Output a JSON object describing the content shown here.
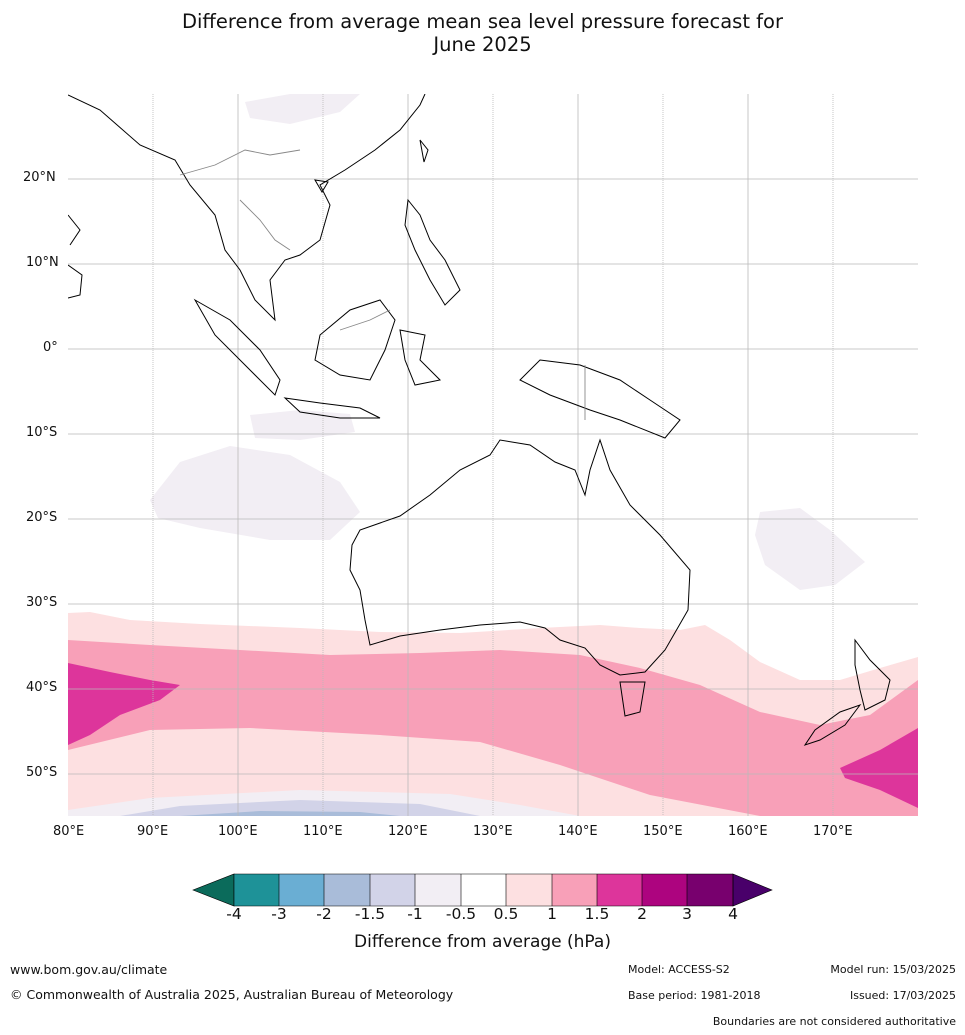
{
  "title_line1": "Difference from average mean sea level pressure forecast for",
  "title_line2": "June 2025",
  "map": {
    "lon_range": [
      80,
      180
    ],
    "lat_range": [
      -55,
      30
    ],
    "lon_ticks": [
      "80°E",
      "90°E",
      "100°E",
      "110°E",
      "120°E",
      "130°E",
      "140°E",
      "150°E",
      "160°E",
      "170°E"
    ],
    "lat_ticks": [
      "20°N",
      "10°N",
      "0°",
      "10°S",
      "20°S",
      "30°S",
      "40°S",
      "50°S"
    ],
    "grid": true,
    "boundaries_icon": "coastline-outline"
  },
  "colorbar": {
    "title": "Difference from average (hPa)",
    "labels": [
      "-4",
      "-3",
      "-2",
      "-1.5",
      "-1",
      "-0.5",
      "0.5",
      "1",
      "1.5",
      "2",
      "3",
      "4"
    ],
    "colors": [
      "#0b6b5b",
      "#1e9298",
      "#6aaed3",
      "#a9bcd9",
      "#d2d3e8",
      "#f2eef4",
      "#ffffff",
      "#fde0e1",
      "#f8a0b8",
      "#dd359b",
      "#ad047f",
      "#78006e",
      "#49006a"
    ]
  },
  "footer": {
    "url": "www.bom.gov.au/climate",
    "copyright": "© Commonwealth of Australia 2025, Australian Bureau of Meteorology",
    "model": "Model: ACCESS-S2",
    "base_period": "Base period: 1981-2018",
    "model_run": "Model run: 15/03/2025",
    "issued": "Issued: 17/03/2025",
    "disclaimer": "Boundaries are not considered authoritative"
  }
}
